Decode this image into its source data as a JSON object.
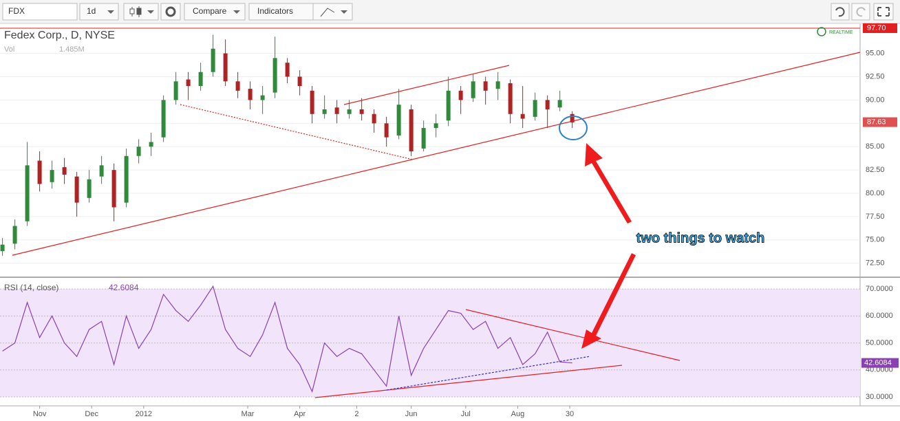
{
  "toolbar": {
    "symbol": "FDX",
    "interval": "1d",
    "compare": "Compare",
    "indicators": "Indicators"
  },
  "annotation": "two things to watch",
  "chart_data": [
    {
      "type": "candlestick",
      "title": "Fedex Corp., D, NYSE",
      "volume_label": "Vol",
      "volume_value": "1.485M",
      "realtime": "REALTIME",
      "up_color": "#2e8b3a",
      "down_color": "#b22222",
      "xlim": [
        0,
        347.2
      ],
      "ylim": [
        71.08,
        98.14
      ],
      "yticks": [
        {
          "value": 95,
          "label": "95.00"
        },
        {
          "value": 92.5,
          "label": "92.50"
        },
        {
          "value": 90,
          "label": "90.00"
        },
        {
          "value": 87.5,
          "label": "87.50"
        },
        {
          "value": 85,
          "label": "85.00"
        },
        {
          "value": 82.5,
          "label": "82.50"
        },
        {
          "value": 80,
          "label": "80.00"
        },
        {
          "value": 77.5,
          "label": "77.50"
        },
        {
          "value": 75,
          "label": "75.00"
        },
        {
          "value": 72.5,
          "label": "72.50"
        }
      ],
      "hline": {
        "value": 97.7,
        "label": "97.70"
      },
      "last_price": 87.63,
      "x": [
        1,
        6,
        11,
        16,
        21,
        26,
        31,
        36,
        41,
        46,
        51,
        56,
        61,
        66,
        71,
        76,
        81,
        86,
        91,
        96,
        101,
        106,
        111,
        116,
        121,
        126,
        131,
        136,
        141,
        146,
        151,
        156,
        161,
        166,
        171,
        176,
        181,
        186,
        191,
        196,
        201,
        206,
        211,
        216,
        221,
        226,
        231
      ],
      "open": [
        73.8,
        74.6,
        77.0,
        83.5,
        81.2,
        82.8,
        81.8,
        79.5,
        81.8,
        82.5,
        79.0,
        84.0,
        85.0,
        86.0,
        90.0,
        92.2,
        91.5,
        93.0,
        95.0,
        92.0,
        91.2,
        90.0,
        90.8,
        94.0,
        92.5,
        91.0,
        88.5,
        89.2,
        88.5,
        89.0,
        88.5,
        87.5,
        86.2,
        89.0,
        84.8,
        87.0,
        87.8,
        91.0,
        90.2,
        92.0,
        91.2,
        91.8,
        88.5,
        88.2,
        90.0,
        89.2,
        88.5
      ],
      "high": [
        75.2,
        77.2,
        85.5,
        84.5,
        83.5,
        83.8,
        82.3,
        82.5,
        84.0,
        83.2,
        84.8,
        85.8,
        86.5,
        90.5,
        93.0,
        93.0,
        94.0,
        97.0,
        96.5,
        93.0,
        92.0,
        91.5,
        96.8,
        94.5,
        93.2,
        91.5,
        90.5,
        90.0,
        90.0,
        90.2,
        89.0,
        88.2,
        91.2,
        89.5,
        87.8,
        88.5,
        92.5,
        91.5,
        92.8,
        92.5,
        93.0,
        92.2,
        91.5,
        90.8,
        90.5,
        91.0,
        88.8
      ],
      "low": [
        73.3,
        74.0,
        76.5,
        80.2,
        80.5,
        81.0,
        77.5,
        79.0,
        81.0,
        77.0,
        78.5,
        83.2,
        84.0,
        85.5,
        89.5,
        90.0,
        91.0,
        92.5,
        91.5,
        90.2,
        89.0,
        88.5,
        90.2,
        91.8,
        90.5,
        87.5,
        88.0,
        87.5,
        88.0,
        87.8,
        86.5,
        85.0,
        85.8,
        84.0,
        84.5,
        86.0,
        87.2,
        88.5,
        89.8,
        89.5,
        90.0,
        87.5,
        87.0,
        87.8,
        87.0,
        88.8,
        87.0
      ],
      "close": [
        74.5,
        76.5,
        83.0,
        81.0,
        82.5,
        82.0,
        79.0,
        81.5,
        83.0,
        78.5,
        84.0,
        85.0,
        85.5,
        90.0,
        92.0,
        91.5,
        93.0,
        95.5,
        92.0,
        91.0,
        90.0,
        90.5,
        94.5,
        92.5,
        91.5,
        88.5,
        89.0,
        88.5,
        89.0,
        88.5,
        87.5,
        86.0,
        89.5,
        84.5,
        87.0,
        87.5,
        91.0,
        90.0,
        92.0,
        91.0,
        92.0,
        88.5,
        88.0,
        90.0,
        89.0,
        90.0,
        87.6
      ]
    },
    {
      "type": "line",
      "title": "RSI (14, close)",
      "color": "#8b3fb5",
      "last_value": 42.6084,
      "xlim": [
        0,
        347.2
      ],
      "ylim": [
        26.7,
        74.1
      ],
      "yticks": [
        {
          "value": 70,
          "label": "70.0000"
        },
        {
          "value": 60,
          "label": "60.0000"
        },
        {
          "value": 50,
          "label": "50.0000"
        },
        {
          "value": 40,
          "label": "40.0000"
        },
        {
          "value": 30,
          "label": "30.0000"
        }
      ],
      "xticks": [
        {
          "value": 16,
          "label": "Nov"
        },
        {
          "value": 37,
          "label": "Dec"
        },
        {
          "value": 58,
          "label": "2012"
        },
        {
          "value": 100,
          "label": "Mar"
        },
        {
          "value": 121,
          "label": "Apr"
        },
        {
          "value": 144,
          "label": "2"
        },
        {
          "value": 166,
          "label": "Jun"
        },
        {
          "value": 188,
          "label": "Jul"
        },
        {
          "value": 209,
          "label": "Aug"
        },
        {
          "value": 230,
          "label": "30"
        }
      ],
      "x": [
        1,
        6,
        11,
        16,
        21,
        26,
        31,
        36,
        41,
        46,
        51,
        56,
        61,
        66,
        71,
        76,
        81,
        86,
        91,
        96,
        101,
        106,
        111,
        116,
        121,
        126,
        131,
        136,
        141,
        146,
        151,
        156,
        161,
        166,
        171,
        176,
        181,
        186,
        191,
        196,
        201,
        206,
        211,
        216,
        221,
        226,
        231
      ],
      "values": [
        47,
        50,
        65,
        52,
        60,
        50,
        45,
        55,
        58,
        42,
        60,
        48,
        55,
        68,
        62,
        58,
        64,
        71,
        55,
        48,
        45,
        53,
        65,
        48,
        42,
        32,
        50,
        45,
        48,
        46,
        40,
        34,
        60,
        38,
        48,
        55,
        62,
        61,
        55,
        58,
        48,
        52,
        42,
        46,
        54,
        43,
        42.6084
      ]
    }
  ]
}
